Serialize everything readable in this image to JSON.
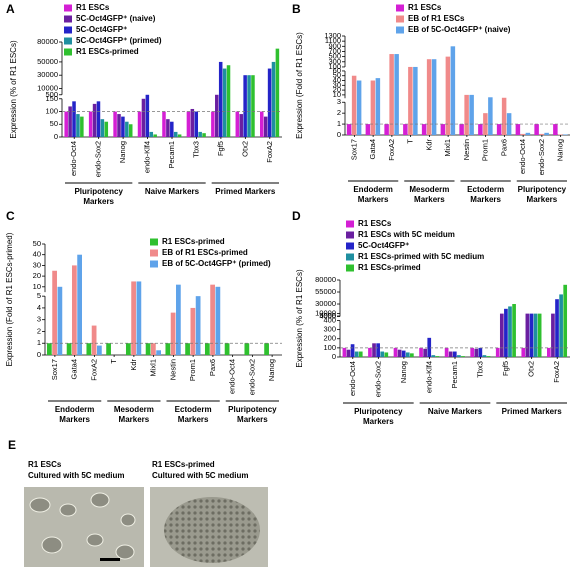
{
  "chart_data": [
    {
      "panel": "A",
      "type": "bar",
      "ylabel": "Expression (% of R1 ESCs)",
      "categories": [
        "endo-Oct4",
        "endo-Sox2",
        "Nanog",
        "endo-Klf4",
        "Pecam1",
        "Tbx3",
        "Fgf5",
        "Otx2",
        "FoxA2"
      ],
      "groups": [
        "Pluripotency Markers",
        "Naive Markers",
        "Primed Markers"
      ],
      "series": [
        {
          "name": "R1 ESCs",
          "color": "#d41fd4",
          "values": [
            100,
            100,
            100,
            100,
            100,
            100,
            100,
            100,
            100
          ]
        },
        {
          "name": "5C-Oct4GFP⁺ (naive)",
          "color": "#6a1fa0",
          "values": [
            120,
            130,
            90,
            150,
            70,
            110,
            220,
            90,
            80
          ]
        },
        {
          "name": "5C-Oct4GFP⁺",
          "color": "#2424c8",
          "values": [
            140,
            140,
            80,
            210,
            60,
            100,
            50000,
            30000,
            40000
          ]
        },
        {
          "name": "5C-Oct4GFP⁺ (primed)",
          "color": "#1f8fa0",
          "values": [
            90,
            70,
            60,
            20,
            20,
            20,
            40000,
            30000,
            50000
          ]
        },
        {
          "name": "R1 ESCs-primed",
          "color": "#2fc02f",
          "values": [
            80,
            60,
            50,
            10,
            10,
            15,
            45000,
            30000,
            70000
          ]
        }
      ],
      "y_segments": [
        {
          "ylim": [
            0,
            150
          ],
          "yticks": [
            0,
            50,
            100,
            150
          ]
        },
        {
          "ylim": [
            500,
            80000
          ],
          "yticks": [
            500,
            10000,
            30000,
            50000,
            80000
          ]
        }
      ],
      "reference_line": 100
    },
    {
      "panel": "B",
      "type": "bar",
      "ylabel": "Expression (Fold of R1 ESCs)",
      "categories": [
        "Sox17",
        "Gata4",
        "FoxA2",
        "T",
        "Kdr",
        "Mixl1",
        "Nestin",
        "Prom1",
        "Pax6",
        "endo-Oct4",
        "endo-Sox2",
        "Nanog"
      ],
      "groups": [
        "Endoderm Markers",
        "Mesoderm Markers",
        "Ectoderm Markers",
        "Pluripotency Markers"
      ],
      "series": [
        {
          "name": "R1 ESCs",
          "color": "#d41fd4",
          "values": [
            1,
            1,
            1,
            1,
            1,
            1,
            1,
            1,
            1,
            1,
            1,
            1
          ]
        },
        {
          "name": "EB of R1 ESCs",
          "color": "#f08a8a",
          "values": [
            50,
            40,
            600,
            100,
            400,
            500,
            10,
            2,
            4,
            0.1,
            0.1,
            0.05
          ]
        },
        {
          "name": "EB of 5C-Oct4GFP⁺ (naive)",
          "color": "#5fa3ea",
          "values": [
            40,
            45,
            600,
            100,
            400,
            900,
            10,
            5,
            2,
            0.2,
            0.2,
            0.05
          ]
        }
      ],
      "y_segments": [
        {
          "ylim": [
            0,
            3
          ],
          "yticks": [
            0,
            1,
            2,
            3
          ]
        },
        {
          "ylim": [
            3,
            60
          ],
          "yticks": [
            10,
            20,
            30,
            40,
            50,
            60
          ]
        },
        {
          "ylim": [
            100,
            1300
          ],
          "yticks": [
            100,
            300,
            500,
            700,
            900,
            1100,
            1300
          ]
        }
      ],
      "reference_line": 1
    },
    {
      "panel": "C",
      "type": "bar",
      "ylabel": "Expression (Fold of R1 ESCs-primed)",
      "categories": [
        "Sox17",
        "Gata4",
        "FoxA2",
        "T",
        "Kdr",
        "Mixl1",
        "Nestin",
        "Prom1",
        "Pax6",
        "endo-Oct4",
        "endo-Sox2",
        "Nanog"
      ],
      "groups": [
        "Endoderm Markers",
        "Mesoderm Markers",
        "Ectoderm Markers",
        "Pluripotency Markers"
      ],
      "series": [
        {
          "name": "R1 ESCs-primed",
          "color": "#2fc02f",
          "values": [
            1,
            1,
            1,
            1,
            1,
            1,
            1,
            1,
            1,
            1,
            1,
            1
          ]
        },
        {
          "name": "EB of R1 ESCs-primed",
          "color": "#f08a8a",
          "values": [
            25,
            30,
            2.5,
            0,
            15,
            1,
            3.6,
            4,
            12,
            0,
            0,
            0
          ]
        },
        {
          "name": "EB of 5C-Oct4GFP⁺ (primed)",
          "color": "#5fa3ea",
          "values": [
            10,
            40,
            0.8,
            0,
            15,
            0.4,
            12,
            5,
            10,
            0,
            0,
            0
          ]
        }
      ],
      "y_segments": [
        {
          "ylim": [
            0,
            5
          ],
          "yticks": [
            0,
            1,
            2,
            3,
            4,
            5
          ]
        },
        {
          "ylim": [
            5,
            50
          ],
          "yticks": [
            10,
            20,
            30,
            40,
            50
          ]
        }
      ],
      "reference_line": 1
    },
    {
      "panel": "D",
      "type": "bar",
      "ylabel": "Expression (% of R1 ESCs)",
      "categories": [
        "endo-Oct4",
        "endo-Sox2",
        "Nanog",
        "endo-Klf4",
        "Pecam1",
        "Tbx3",
        "Fgf5",
        "Otx2",
        "FoxA2"
      ],
      "groups": [
        "Pluripotency Markers",
        "Naive Markers",
        "Primed Markers"
      ],
      "series": [
        {
          "name": "R1 ESCs",
          "color": "#d41fd4",
          "values": [
            100,
            100,
            100,
            100,
            100,
            100,
            100,
            100,
            100
          ]
        },
        {
          "name": "R1 ESCs with 5C meidum",
          "color": "#6a1fa0",
          "values": [
            80,
            150,
            80,
            90,
            60,
            90,
            10000,
            10000,
            10000
          ]
        },
        {
          "name": "5C-Oct4GFP⁺",
          "color": "#2424c8",
          "values": [
            140,
            150,
            70,
            210,
            60,
            100,
            20000,
            10000,
            40000
          ]
        },
        {
          "name": "R1 ESCs-primed with 5C medium",
          "color": "#1f8fa0",
          "values": [
            60,
            60,
            50,
            20,
            20,
            20,
            25000,
            10000,
            50000
          ]
        },
        {
          "name": "R1 ESCs-primed",
          "color": "#2fc02f",
          "values": [
            60,
            50,
            40,
            10,
            10,
            10,
            30000,
            10000,
            70000
          ]
        }
      ],
      "y_segments": [
        {
          "ylim": [
            0,
            400
          ],
          "yticks": [
            0,
            100,
            200,
            300,
            400
          ]
        },
        {
          "ylim": [
            4000,
            80000
          ],
          "yticks": [
            4000,
            5000,
            10000,
            30000,
            55000,
            80000
          ]
        }
      ],
      "reference_line": 100
    }
  ],
  "panel_e": {
    "panel": "E",
    "images": [
      {
        "title": "R1 ESCs",
        "subtitle": "Cultured with 5C medium"
      },
      {
        "title": "R1 ESCs-primed",
        "subtitle": "Cultured with 5C medium"
      }
    ]
  }
}
